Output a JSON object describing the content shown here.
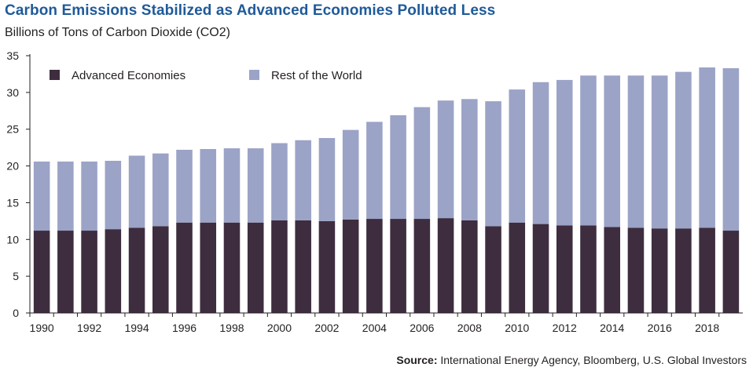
{
  "chart_data": {
    "type": "bar",
    "stacked": true,
    "title": "Carbon Emissions Stabilized as Advanced Economies Polluted Less",
    "subtitle": "Billions of Tons of Carbon Dioxide (CO2)",
    "xlabel": "",
    "ylabel": "Billions of Tons of Carbon Dioxide (CO2)",
    "ylim": [
      0,
      35
    ],
    "yticks": [
      0,
      5,
      10,
      15,
      20,
      25,
      30,
      35
    ],
    "categories": [
      1990,
      1991,
      1992,
      1993,
      1994,
      1995,
      1996,
      1997,
      1998,
      1999,
      2000,
      2001,
      2002,
      2003,
      2004,
      2005,
      2006,
      2007,
      2008,
      2009,
      2010,
      2011,
      2012,
      2013,
      2014,
      2015,
      2016,
      2017,
      2018,
      2019
    ],
    "xtick_labels": [
      "1990",
      "1992",
      "1994",
      "1996",
      "1998",
      "2000",
      "2002",
      "2004",
      "2006",
      "2008",
      "2010",
      "2012",
      "2014",
      "2016",
      "2018"
    ],
    "series": [
      {
        "name": "Advanced Economies",
        "color": "#3e2d3f",
        "values": [
          11.2,
          11.2,
          11.2,
          11.4,
          11.6,
          11.8,
          12.3,
          12.3,
          12.3,
          12.3,
          12.6,
          12.6,
          12.5,
          12.7,
          12.8,
          12.8,
          12.8,
          12.9,
          12.6,
          11.8,
          12.3,
          12.1,
          11.9,
          11.9,
          11.7,
          11.6,
          11.5,
          11.5,
          11.6,
          11.2
        ]
      },
      {
        "name": "Rest of the World",
        "color": "#9ba3c7",
        "values": [
          9.4,
          9.4,
          9.4,
          9.3,
          9.8,
          9.9,
          9.9,
          10.0,
          10.1,
          10.1,
          10.5,
          10.9,
          11.3,
          12.2,
          13.2,
          14.1,
          15.2,
          16.0,
          16.5,
          17.0,
          18.1,
          19.3,
          19.8,
          20.4,
          20.6,
          20.7,
          20.8,
          21.3,
          21.8,
          22.1
        ]
      }
    ],
    "legend": [
      "Advanced Economies",
      "Rest of the World"
    ],
    "legend_position": "top-left",
    "grid": false
  },
  "source": {
    "label": "Source:",
    "text": " International Energy Agency, Bloomberg, U.S. Global Investors"
  }
}
